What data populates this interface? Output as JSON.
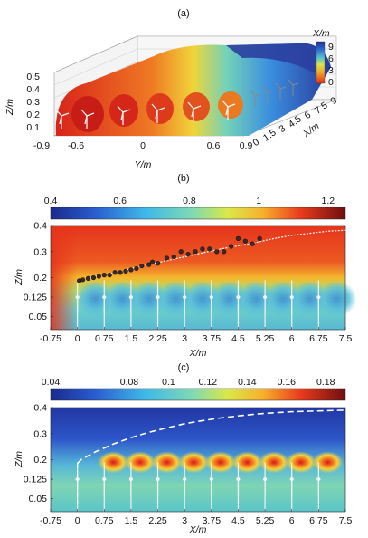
{
  "panels": {
    "a": {
      "label": "(a)"
    },
    "b": {
      "label": "(b)"
    },
    "c": {
      "label": "(c)"
    }
  },
  "chart_data": [
    {
      "panel": "(a)",
      "type": "heatmap",
      "description_axes": "3D surface",
      "colorbar": {
        "label": "X/m",
        "ticks": [
          "9",
          "6",
          "3",
          "0"
        ],
        "range": [
          0,
          9
        ]
      },
      "z_axis": {
        "label": "Z/m",
        "ticks": [
          "0.5",
          "0.4",
          "0.3",
          "0.2",
          "0.1"
        ]
      },
      "y_axis": {
        "label": "Y/m",
        "ticks": [
          "-0.9",
          "-0.6",
          "0",
          "0.6",
          "0.9"
        ]
      },
      "x_axis": {
        "label": "X/m",
        "ticks": [
          "0",
          "1.5",
          "3",
          "4.5",
          "6",
          "7.5",
          "9"
        ]
      },
      "turbines": 10
    },
    {
      "panel": "(b)",
      "type": "heatmap",
      "colorbar": {
        "ticks": [
          "0.4",
          "0.6",
          "0.8",
          "1",
          "1.2"
        ],
        "range": [
          0.4,
          1.25
        ]
      },
      "xlabel": "X/m",
      "ylabel": "Z/m",
      "xticks": [
        "-0.75",
        "0",
        "0.75",
        "1.5",
        "2.25",
        "3",
        "3.75",
        "4.5",
        "5.25",
        "6",
        "6.75",
        "7.5"
      ],
      "yticks": [
        "0.4",
        "0.3",
        "0.2",
        "0.125",
        "0.05"
      ],
      "xlim": [
        -0.75,
        7.5
      ],
      "ylim": [
        0,
        0.4
      ],
      "boundary_line": {
        "x": [
          0,
          0.1,
          0.5,
          1,
          1.5,
          2,
          2.5,
          3,
          3.5,
          4,
          4.5,
          5,
          5.5,
          6,
          6.5,
          7,
          7.5
        ],
        "y": [
          0.185,
          0.192,
          0.205,
          0.218,
          0.235,
          0.25,
          0.265,
          0.28,
          0.295,
          0.31,
          0.322,
          0.335,
          0.35,
          0.362,
          0.37,
          0.378,
          0.382
        ]
      },
      "measured_points": {
        "x": [
          0.05,
          0.15,
          0.3,
          0.45,
          0.6,
          0.75,
          0.9,
          1.05,
          1.2,
          1.35,
          1.5,
          1.65,
          1.8,
          2.0,
          2.1,
          2.25,
          2.5,
          2.7,
          2.9,
          3.1,
          3.3,
          3.5,
          3.7,
          3.9,
          4.1,
          4.3,
          4.5,
          4.7,
          4.9,
          5.1
        ],
        "y": [
          0.188,
          0.192,
          0.197,
          0.2,
          0.205,
          0.21,
          0.21,
          0.22,
          0.22,
          0.225,
          0.23,
          0.235,
          0.245,
          0.25,
          0.26,
          0.255,
          0.275,
          0.28,
          0.3,
          0.29,
          0.3,
          0.31,
          0.31,
          0.3,
          0.3,
          0.32,
          0.35,
          0.34,
          0.33,
          0.35
        ]
      },
      "turbine_x": [
        0,
        0.75,
        1.5,
        2.25,
        3,
        3.75,
        4.5,
        5.25,
        6,
        6.75
      ]
    },
    {
      "panel": "(c)",
      "type": "heatmap",
      "colorbar": {
        "ticks": [
          "0.04",
          "0.08",
          "0.1",
          "0.12",
          "0.14",
          "0.16",
          "0.18"
        ],
        "range": [
          0.04,
          0.19
        ]
      },
      "xlabel": "X/m",
      "ylabel": "Z/m",
      "xticks": [
        "-0.75",
        "0",
        "0.75",
        "1.5",
        "2.25",
        "3",
        "3.75",
        "4.5",
        "5.25",
        "6",
        "6.75",
        "7.5"
      ],
      "yticks": [
        "0.4",
        "0.3",
        "0.2",
        "0.125",
        "0.05"
      ],
      "xlim": [
        -0.75,
        7.5
      ],
      "ylim": [
        0,
        0.4
      ],
      "boundary_line": {
        "x": [
          0,
          0.1,
          0.5,
          1,
          1.5,
          2,
          2.5,
          3,
          3.5,
          4,
          4.5,
          5,
          5.5,
          6,
          6.5,
          7,
          7.5
        ],
        "y": [
          0.185,
          0.2,
          0.23,
          0.26,
          0.285,
          0.305,
          0.322,
          0.338,
          0.35,
          0.36,
          0.368,
          0.375,
          0.38,
          0.384,
          0.386,
          0.388,
          0.39
        ]
      },
      "turbine_x": [
        0,
        0.75,
        1.5,
        2.25,
        3,
        3.75,
        4.5,
        5.25,
        6,
        6.75
      ]
    }
  ]
}
